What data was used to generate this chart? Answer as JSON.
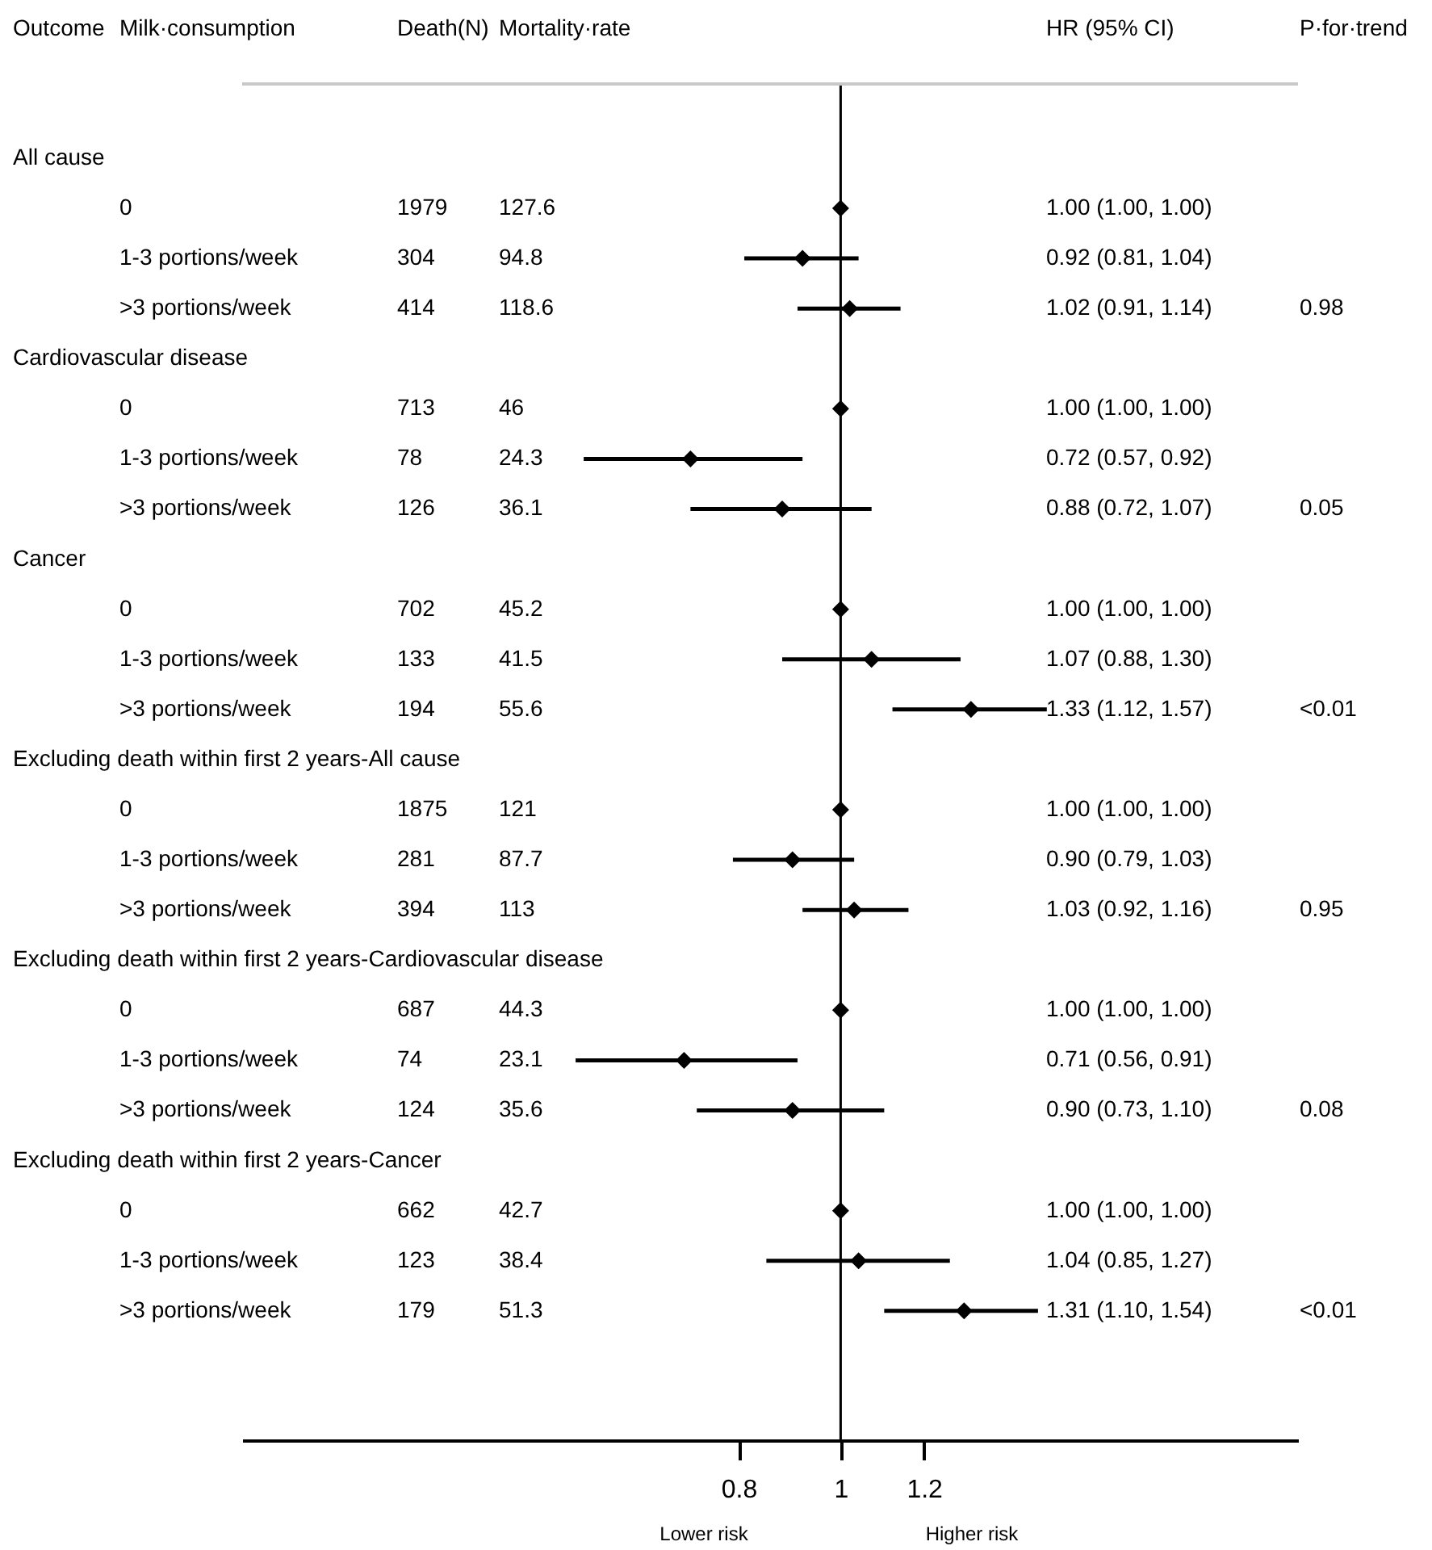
{
  "chart_data": {
    "type": "scatter",
    "orientation": "horizontal",
    "log": "x",
    "marker": "diamond",
    "ylabel": "Milk·consumption",
    "xlim": [
      0.27,
      2.72
    ],
    "xticks": [
      0.8,
      1,
      1.2
    ],
    "categories": [
      null,
      "0",
      "1-3 portions/week",
      ">3 portions/week",
      null,
      "0",
      "1-3 portions/week",
      ">3 portions/week",
      null,
      "0",
      "1-3 portions/week",
      ">3 portions/week",
      null,
      "0",
      "1-3 portions/week",
      ">3 portions/week",
      null,
      "0",
      "1-3 portions/week",
      ">3 portions/week",
      null,
      "0",
      "1-3 portions/week",
      ">3 portions/week"
    ],
    "series": [
      {
        "type": "scatter",
        "color": "#000000",
        "values": [
          null,
          1.0,
          0.92,
          1.02,
          null,
          1.0,
          0.72,
          0.88,
          null,
          1.0,
          1.07,
          1.33,
          null,
          1.0,
          0.9,
          1.03,
          null,
          1.0,
          0.71,
          0.9,
          null,
          1.0,
          1.04,
          1.31
        ],
        "errors": [
          null,
          [
            1.0,
            1.0
          ],
          [
            0.81,
            1.04
          ],
          [
            0.91,
            1.14
          ],
          null,
          [
            1.0,
            1.0
          ],
          [
            0.57,
            0.92
          ],
          [
            0.72,
            1.07
          ],
          null,
          [
            1.0,
            1.0
          ],
          [
            0.88,
            1.3
          ],
          [
            1.12,
            1.57
          ],
          null,
          [
            1.0,
            1.0
          ],
          [
            0.79,
            1.03
          ],
          [
            0.92,
            1.16
          ],
          null,
          [
            1.0,
            1.0
          ],
          [
            0.56,
            0.91
          ],
          [
            0.73,
            1.1
          ],
          null,
          [
            1.0,
            1.0
          ],
          [
            0.85,
            1.27
          ],
          [
            1.1,
            1.54
          ]
        ]
      },
      {
        "name": "Death(N)",
        "type": "other",
        "values": [
          null,
          null,
          null,
          null,
          null,
          null,
          null,
          null,
          null,
          null,
          null,
          null,
          null,
          null,
          null,
          null,
          null,
          null,
          null,
          null,
          null,
          null,
          null,
          null
        ],
        "value_labels": [
          null,
          "1979",
          "304",
          "414",
          null,
          "713",
          "78",
          "126",
          null,
          "702",
          "133",
          "194",
          null,
          "1875",
          "281",
          "394",
          null,
          "687",
          "74",
          "124",
          null,
          "662",
          "123",
          "179"
        ]
      },
      {
        "name": "Mortality·rate",
        "type": "other",
        "values": [
          null,
          null,
          null,
          null,
          null,
          null,
          null,
          null,
          null,
          null,
          null,
          null,
          null,
          null,
          null,
          null,
          null,
          null,
          null,
          null,
          null,
          null,
          null,
          null
        ],
        "value_labels": [
          null,
          "127.6",
          "94.8",
          "118.6",
          null,
          "46",
          "24.3",
          "36.1",
          null,
          "45.2",
          "41.5",
          "55.6",
          null,
          "121",
          "87.7",
          "113",
          null,
          "44.3",
          "23.1",
          "35.6",
          null,
          "42.7",
          "38.4",
          "51.3"
        ]
      },
      {
        "name": "HR (95% CI)",
        "type": "other",
        "values": [
          null,
          null,
          null,
          null,
          null,
          null,
          null,
          null,
          null,
          null,
          null,
          null,
          null,
          null,
          null,
          null,
          null,
          null,
          null,
          null,
          null,
          null,
          null,
          null
        ],
        "value_labels": [
          null,
          "1.00 (1.00, 1.00)",
          "0.92 (0.81, 1.04)",
          "1.02 (0.91, 1.14)",
          null,
          "1.00 (1.00, 1.00)",
          "0.72 (0.57, 0.92)",
          "0.88 (0.72, 1.07)",
          null,
          "1.00 (1.00, 1.00)",
          "1.07 (0.88, 1.30)",
          "1.33 (1.12, 1.57)",
          null,
          "1.00 (1.00, 1.00)",
          "0.90 (0.79, 1.03)",
          "1.03 (0.92, 1.16)",
          null,
          "1.00 (1.00, 1.00)",
          "0.71 (0.56, 0.91)",
          "0.90 (0.73, 1.10)",
          null,
          "1.00 (1.00, 1.00)",
          "1.04 (0.85, 1.27)",
          "1.31 (1.10, 1.54)"
        ]
      },
      {
        "name": "P·for·trend",
        "type": "other",
        "values": [
          null,
          null,
          null,
          null,
          null,
          null,
          null,
          null,
          null,
          null,
          null,
          null,
          null,
          null,
          null,
          null,
          null,
          null,
          null,
          null,
          null,
          null,
          null,
          null
        ],
        "value_labels": [
          null,
          null,
          null,
          "0.98",
          null,
          null,
          null,
          "0.05",
          null,
          null,
          null,
          "<0.01",
          null,
          null,
          null,
          "0.95",
          null,
          null,
          null,
          "0.08",
          null,
          null,
          null,
          "<0.01"
        ]
      }
    ],
    "ref_lines": [
      {
        "axis": "x",
        "value": 1,
        "color": "#000000"
      }
    ],
    "annotations": [
      "Outcome",
      "Lower risk",
      "Higher risk",
      "All cause",
      "Cardiovascular disease",
      "Cancer",
      "Excluding death within first 2 years-All cause",
      "Excluding death within first 2 years-Cardiovascular disease",
      "Excluding death within first 2 years-Cancer"
    ]
  }
}
